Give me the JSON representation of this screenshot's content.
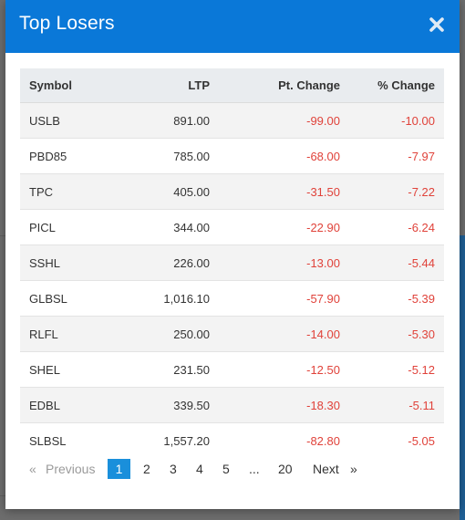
{
  "modal": {
    "title": "Top Losers",
    "accent_color": "#0a78d8",
    "close_icon": "close-icon"
  },
  "table": {
    "headers": {
      "symbol": "Symbol",
      "ltp": "LTP",
      "pt_change": "Pt. Change",
      "pct_change": "% Change"
    },
    "rows": [
      {
        "symbol": "USLB",
        "ltp": "891.00",
        "pt_change": "-99.00",
        "pct_change": "-10.00"
      },
      {
        "symbol": "PBD85",
        "ltp": "785.00",
        "pt_change": "-68.00",
        "pct_change": "-7.97"
      },
      {
        "symbol": "TPC",
        "ltp": "405.00",
        "pt_change": "-31.50",
        "pct_change": "-7.22"
      },
      {
        "symbol": "PICL",
        "ltp": "344.00",
        "pt_change": "-22.90",
        "pct_change": "-6.24"
      },
      {
        "symbol": "SSHL",
        "ltp": "226.00",
        "pt_change": "-13.00",
        "pct_change": "-5.44"
      },
      {
        "symbol": "GLBSL",
        "ltp": "1,016.10",
        "pt_change": "-57.90",
        "pct_change": "-5.39"
      },
      {
        "symbol": "RLFL",
        "ltp": "250.00",
        "pt_change": "-14.00",
        "pct_change": "-5.30"
      },
      {
        "symbol": "SHEL",
        "ltp": "231.50",
        "pt_change": "-12.50",
        "pct_change": "-5.12"
      },
      {
        "symbol": "EDBL",
        "ltp": "339.50",
        "pt_change": "-18.30",
        "pct_change": "-5.11"
      },
      {
        "symbol": "SLBSL",
        "ltp": "1,557.20",
        "pt_change": "-82.80",
        "pct_change": "-5.05"
      }
    ],
    "negative_color": "#e0423a"
  },
  "pagination": {
    "prev_arrow": "«",
    "previous": "Previous",
    "pages": [
      "1",
      "2",
      "3",
      "4",
      "5"
    ],
    "ellipsis": "...",
    "last_page": "20",
    "next": "Next",
    "next_arrow": "»",
    "current_page": "1"
  }
}
